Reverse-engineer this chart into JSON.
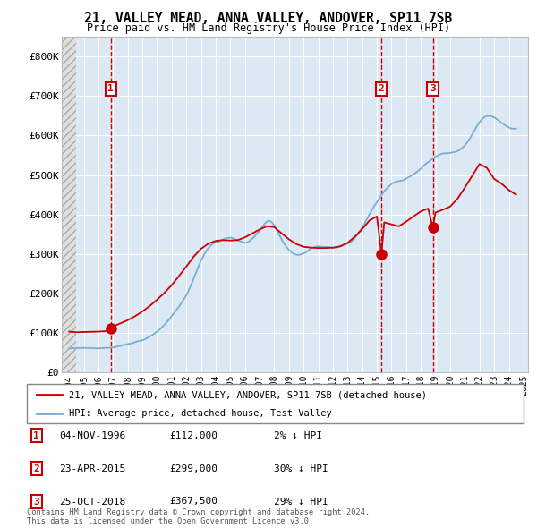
{
  "title": "21, VALLEY MEAD, ANNA VALLEY, ANDOVER, SP11 7SB",
  "subtitle": "Price paid vs. HM Land Registry's House Price Index (HPI)",
  "legend_line1": "21, VALLEY MEAD, ANNA VALLEY, ANDOVER, SP11 7SB (detached house)",
  "legend_line2": "HPI: Average price, detached house, Test Valley",
  "footer": "Contains HM Land Registry data © Crown copyright and database right 2024.\nThis data is licensed under the Open Government Licence v3.0.",
  "transactions": [
    {
      "label": "1",
      "date": "04-NOV-1996",
      "price": 112000,
      "price_str": "£112,000",
      "pct": "2% ↓ HPI",
      "year": 1996.84
    },
    {
      "label": "2",
      "date": "23-APR-2015",
      "price": 299000,
      "price_str": "£299,000",
      "pct": "30% ↓ HPI",
      "year": 2015.31
    },
    {
      "label": "3",
      "date": "25-OCT-2018",
      "price": 367500,
      "price_str": "£367,500",
      "pct": "29% ↓ HPI",
      "year": 2018.81
    }
  ],
  "hpi_years": [
    1994.0,
    1994.08,
    1994.17,
    1994.25,
    1994.33,
    1994.42,
    1994.5,
    1994.58,
    1994.67,
    1994.75,
    1994.83,
    1994.92,
    1995.0,
    1995.08,
    1995.17,
    1995.25,
    1995.33,
    1995.42,
    1995.5,
    1995.58,
    1995.67,
    1995.75,
    1995.83,
    1995.92,
    1996.0,
    1996.08,
    1996.17,
    1996.25,
    1996.33,
    1996.42,
    1996.5,
    1996.58,
    1996.67,
    1996.75,
    1996.83,
    1996.92,
    1997.0,
    1997.08,
    1997.17,
    1997.25,
    1997.33,
    1997.42,
    1997.5,
    1997.58,
    1997.67,
    1997.75,
    1997.83,
    1997.92,
    1998.0,
    1998.08,
    1998.17,
    1998.25,
    1998.33,
    1998.42,
    1998.5,
    1998.58,
    1998.67,
    1998.75,
    1998.83,
    1998.92,
    1999.0,
    1999.08,
    1999.17,
    1999.25,
    1999.33,
    1999.42,
    1999.5,
    1999.58,
    1999.67,
    1999.75,
    1999.83,
    1999.92,
    2000.0,
    2000.08,
    2000.17,
    2000.25,
    2000.33,
    2000.42,
    2000.5,
    2000.58,
    2000.67,
    2000.75,
    2000.83,
    2000.92,
    2001.0,
    2001.08,
    2001.17,
    2001.25,
    2001.33,
    2001.42,
    2001.5,
    2001.58,
    2001.67,
    2001.75,
    2001.83,
    2001.92,
    2002.0,
    2002.08,
    2002.17,
    2002.25,
    2002.33,
    2002.42,
    2002.5,
    2002.58,
    2002.67,
    2002.75,
    2002.83,
    2002.92,
    2003.0,
    2003.08,
    2003.17,
    2003.25,
    2003.33,
    2003.42,
    2003.5,
    2003.58,
    2003.67,
    2003.75,
    2003.83,
    2003.92,
    2004.0,
    2004.08,
    2004.17,
    2004.25,
    2004.33,
    2004.42,
    2004.5,
    2004.58,
    2004.67,
    2004.75,
    2004.83,
    2004.92,
    2005.0,
    2005.08,
    2005.17,
    2005.25,
    2005.33,
    2005.42,
    2005.5,
    2005.58,
    2005.67,
    2005.75,
    2005.83,
    2005.92,
    2006.0,
    2006.08,
    2006.17,
    2006.25,
    2006.33,
    2006.42,
    2006.5,
    2006.58,
    2006.67,
    2006.75,
    2006.83,
    2006.92,
    2007.0,
    2007.08,
    2007.17,
    2007.25,
    2007.33,
    2007.42,
    2007.5,
    2007.58,
    2007.67,
    2007.75,
    2007.83,
    2007.92,
    2008.0,
    2008.08,
    2008.17,
    2008.25,
    2008.33,
    2008.42,
    2008.5,
    2008.58,
    2008.67,
    2008.75,
    2008.83,
    2008.92,
    2009.0,
    2009.08,
    2009.17,
    2009.25,
    2009.33,
    2009.42,
    2009.5,
    2009.58,
    2009.67,
    2009.75,
    2009.83,
    2009.92,
    2010.0,
    2010.08,
    2010.17,
    2010.25,
    2010.33,
    2010.42,
    2010.5,
    2010.58,
    2010.67,
    2010.75,
    2010.83,
    2010.92,
    2011.0,
    2011.08,
    2011.17,
    2011.25,
    2011.33,
    2011.42,
    2011.5,
    2011.58,
    2011.67,
    2011.75,
    2011.83,
    2011.92,
    2012.0,
    2012.08,
    2012.17,
    2012.25,
    2012.33,
    2012.42,
    2012.5,
    2012.58,
    2012.67,
    2012.75,
    2012.83,
    2012.92,
    2013.0,
    2013.08,
    2013.17,
    2013.25,
    2013.33,
    2013.42,
    2013.5,
    2013.58,
    2013.67,
    2013.75,
    2013.83,
    2013.92,
    2014.0,
    2014.08,
    2014.17,
    2014.25,
    2014.33,
    2014.42,
    2014.5,
    2014.58,
    2014.67,
    2014.75,
    2014.83,
    2014.92,
    2015.0,
    2015.08,
    2015.17,
    2015.25,
    2015.33,
    2015.42,
    2015.5,
    2015.58,
    2015.67,
    2015.75,
    2015.83,
    2015.92,
    2016.0,
    2016.08,
    2016.17,
    2016.25,
    2016.33,
    2016.42,
    2016.5,
    2016.58,
    2016.67,
    2016.75,
    2016.83,
    2016.92,
    2017.0,
    2017.08,
    2017.17,
    2017.25,
    2017.33,
    2017.42,
    2017.5,
    2017.58,
    2017.67,
    2017.75,
    2017.83,
    2017.92,
    2018.0,
    2018.08,
    2018.17,
    2018.25,
    2018.33,
    2018.42,
    2018.5,
    2018.58,
    2018.67,
    2018.75,
    2018.83,
    2018.92,
    2019.0,
    2019.08,
    2019.17,
    2019.25,
    2019.33,
    2019.42,
    2019.5,
    2019.58,
    2019.67,
    2019.75,
    2019.83,
    2019.92,
    2020.0,
    2020.08,
    2020.17,
    2020.25,
    2020.33,
    2020.42,
    2020.5,
    2020.58,
    2020.67,
    2020.75,
    2020.83,
    2020.92,
    2021.0,
    2021.08,
    2021.17,
    2021.25,
    2021.33,
    2021.42,
    2021.5,
    2021.58,
    2021.67,
    2021.75,
    2021.83,
    2021.92,
    2022.0,
    2022.08,
    2022.17,
    2022.25,
    2022.33,
    2022.42,
    2022.5,
    2022.58,
    2022.67,
    2022.75,
    2022.83,
    2022.92,
    2023.0,
    2023.08,
    2023.17,
    2023.25,
    2023.33,
    2023.42,
    2023.5,
    2023.58,
    2023.67,
    2023.75,
    2023.83,
    2023.92,
    2024.0,
    2024.08,
    2024.17,
    2024.25,
    2024.33,
    2024.42,
    2024.5
  ],
  "hpi_values": [
    103000,
    103500,
    104000,
    104500,
    104800,
    105000,
    105200,
    105500,
    105800,
    106000,
    106200,
    106500,
    106000,
    105800,
    105500,
    105200,
    105000,
    104800,
    104600,
    104500,
    104400,
    104300,
    104200,
    104100,
    104000,
    104200,
    104500,
    104800,
    105100,
    105400,
    105700,
    106000,
    106400,
    106800,
    107200,
    107600,
    108000,
    109000,
    110000,
    111000,
    112000,
    113500,
    115000,
    116500,
    118000,
    119000,
    120000,
    121000,
    122000,
    123000,
    124000,
    125500,
    127000,
    129000,
    131000,
    133000,
    135000,
    136000,
    137000,
    138000,
    139000,
    141000,
    143500,
    146000,
    149000,
    152000,
    155000,
    158000,
    161500,
    165000,
    169000,
    173000,
    177000,
    181000,
    185000,
    190000,
    195000,
    200500,
    206000,
    212000,
    218000,
    224000,
    230000,
    237000,
    244000,
    251000,
    258000,
    265000,
    272000,
    279000,
    286000,
    294000,
    302000,
    310000,
    318000,
    326000,
    334000,
    345000,
    357000,
    369000,
    382000,
    395000,
    408000,
    421000,
    434000,
    447000,
    460000,
    473000,
    486000,
    496000,
    506000,
    516000,
    524000,
    532000,
    540000,
    546000,
    552000,
    556000,
    560000,
    563000,
    566000,
    567000,
    568000,
    570000,
    572000,
    575000,
    578000,
    580000,
    582000,
    583000,
    584000,
    584500,
    585000,
    584000,
    582000,
    580000,
    578000,
    576000,
    574000,
    572000,
    570000,
    568000,
    566000,
    564000,
    562000,
    563000,
    565000,
    568000,
    572000,
    576000,
    581000,
    586000,
    592000,
    598000,
    604000,
    610000,
    617000,
    624000,
    631000,
    638000,
    645000,
    650000,
    655000,
    657000,
    658000,
    656000,
    652000,
    645000,
    638000,
    628000,
    618000,
    608000,
    598000,
    588000,
    578000,
    568000,
    560000,
    552000,
    545000,
    538000,
    532000,
    527000,
    522000,
    518000,
    515000,
    513000,
    511000,
    510000,
    510000,
    511000,
    513000,
    515000,
    517000,
    519000,
    522000,
    526000,
    530000,
    534000,
    537000,
    540000,
    542000,
    544000,
    546000,
    547000,
    548000,
    547000,
    546000,
    545000,
    545000,
    545000,
    545000,
    545000,
    545000,
    544000,
    543000,
    542000,
    541000,
    541000,
    542000,
    543000,
    545000,
    547000,
    549000,
    551000,
    553000,
    555000,
    557000,
    558000,
    559000,
    561000,
    564000,
    568000,
    573000,
    578000,
    584000,
    591000,
    598000,
    606000,
    614000,
    622000,
    630000,
    639000,
    648000,
    658000,
    668000,
    678000,
    688000,
    697000,
    706000,
    715000,
    724000,
    732000,
    740000,
    748000,
    756000,
    764000,
    772000,
    780000,
    787000,
    793000,
    799000,
    804000,
    809000,
    814000,
    819000,
    822000,
    825000,
    827000,
    829000,
    830000,
    831000,
    832000,
    833000,
    834000,
    836000,
    839000,
    842000,
    845000,
    848000,
    851000,
    854000,
    857000,
    860000,
    864000,
    868000,
    872000,
    876000,
    881000,
    886000,
    891000,
    896000,
    901000,
    906000,
    910000,
    914000,
    918000,
    922000,
    926000,
    930000,
    934000,
    937000,
    940000,
    943000,
    946000,
    948000,
    950000,
    951000,
    952000,
    952000,
    952000,
    953000,
    953000,
    954000,
    955000,
    956000,
    957000,
    958000,
    960000,
    962000,
    965000,
    968000,
    972000,
    976000,
    981000,
    986000,
    993000,
    1000000,
    1008000,
    1016000,
    1025000,
    1034000,
    1044000,
    1053000,
    1062000,
    1071000,
    1079000,
    1087000,
    1094000,
    1100000,
    1105000,
    1109000,
    1112000,
    1114000,
    1115000,
    1115000,
    1114000,
    1113000,
    1111000,
    1108000,
    1105000,
    1101000,
    1097000,
    1093000,
    1089000,
    1085000,
    1081000,
    1077000,
    1073000,
    1070000,
    1067000,
    1064000,
    1062000,
    1060000,
    1059000,
    1059000,
    1059000,
    1060000,
    1062000,
    1064000,
    1067000,
    1070000,
    1073000,
    1076000,
    1079000,
    1082000,
    1085000,
    1088000,
    1091000,
    1093000
  ],
  "prop_years": [
    1994.0,
    1994.5,
    1995.0,
    1995.5,
    1996.0,
    1996.5,
    1996.84,
    1997.0,
    1997.5,
    1998.0,
    1998.5,
    1999.0,
    1999.5,
    2000.0,
    2000.5,
    2001.0,
    2001.5,
    2002.0,
    2002.5,
    2003.0,
    2003.5,
    2004.0,
    2004.5,
    2005.0,
    2005.5,
    2006.0,
    2006.5,
    2007.0,
    2007.5,
    2008.0,
    2008.5,
    2009.0,
    2009.5,
    2010.0,
    2010.5,
    2011.0,
    2011.5,
    2012.0,
    2012.5,
    2013.0,
    2013.5,
    2014.0,
    2014.5,
    2015.0,
    2015.31,
    2015.5,
    2016.0,
    2016.5,
    2017.0,
    2017.5,
    2018.0,
    2018.5,
    2018.81,
    2019.0,
    2019.5,
    2020.0,
    2020.5,
    2021.0,
    2021.5,
    2022.0,
    2022.5,
    2023.0,
    2023.5,
    2024.0,
    2024.5
  ],
  "prop_values": [
    103000,
    101500,
    102000,
    102500,
    103000,
    104000,
    112000,
    116000,
    124000,
    132000,
    142000,
    154000,
    168000,
    184000,
    201000,
    221000,
    244000,
    268000,
    293000,
    313000,
    326000,
    333000,
    335000,
    334000,
    335000,
    342000,
    352000,
    362000,
    370000,
    368000,
    352000,
    337000,
    325000,
    318000,
    316000,
    315000,
    315000,
    316000,
    319000,
    328000,
    344000,
    363000,
    385000,
    395000,
    299000,
    380000,
    375000,
    370000,
    382000,
    395000,
    408000,
    415000,
    367500,
    405000,
    412000,
    420000,
    440000,
    468000,
    498000,
    528000,
    518000,
    490000,
    478000,
    462000,
    450000
  ],
  "hpi_scale": 0.583,
  "hatch_start": 1993.5,
  "hatch_end": 1994.5,
  "xlim": [
    1993.5,
    2025.3
  ],
  "ylim": [
    0,
    850000
  ],
  "yticks": [
    0,
    100000,
    200000,
    300000,
    400000,
    500000,
    600000,
    700000,
    800000
  ],
  "ytick_labels": [
    "£0",
    "£100K",
    "£200K",
    "£300K",
    "£400K",
    "£500K",
    "£600K",
    "£700K",
    "£800K"
  ],
  "xtick_years": [
    1994,
    1995,
    1996,
    1997,
    1998,
    1999,
    2000,
    2001,
    2002,
    2003,
    2004,
    2005,
    2006,
    2007,
    2008,
    2009,
    2010,
    2011,
    2012,
    2013,
    2014,
    2015,
    2016,
    2017,
    2018,
    2019,
    2020,
    2021,
    2022,
    2023,
    2024,
    2025
  ],
  "plot_bg": "#dce9f5",
  "red": "#cc0000",
  "blue": "#7aadd4",
  "grid_color": "#ffffff",
  "hatch_fc": "#e0e0e0",
  "hatch_ec": "#aaaaaa"
}
